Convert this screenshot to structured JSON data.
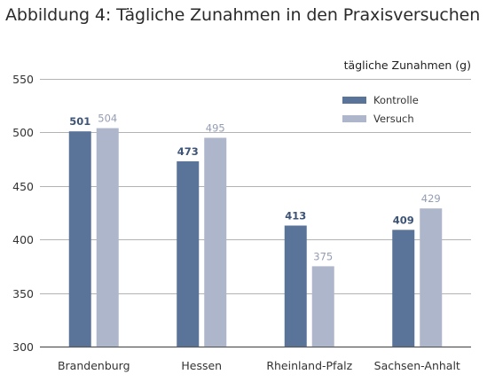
{
  "title": "Abbildung 4: Tägliche Zunahmen in den Praxisversuchen",
  "chart_data": {
    "type": "bar",
    "title": "Abbildung 4: Tägliche Zunahmen in den Praxisversuchen",
    "xlabel": "",
    "ylabel": "tägliche Zunahmen (g)",
    "categories": [
      "Brandenburg",
      "Hessen",
      "Rheinland-Pfalz",
      "Sachsen-Anhalt"
    ],
    "series": [
      {
        "name": "Kontrolle",
        "values": [
          501,
          473,
          413,
          409
        ],
        "color": "#5a7399",
        "label_color": "#3e5477"
      },
      {
        "name": "Versuch",
        "values": [
          504,
          495,
          375,
          429
        ],
        "color": "#adb6cb",
        "label_color": "#949db3"
      }
    ],
    "ylim": [
      300,
      550
    ],
    "yticks": [
      300,
      350,
      400,
      450,
      500,
      550
    ],
    "grid": true,
    "legend_position": "top-right"
  }
}
